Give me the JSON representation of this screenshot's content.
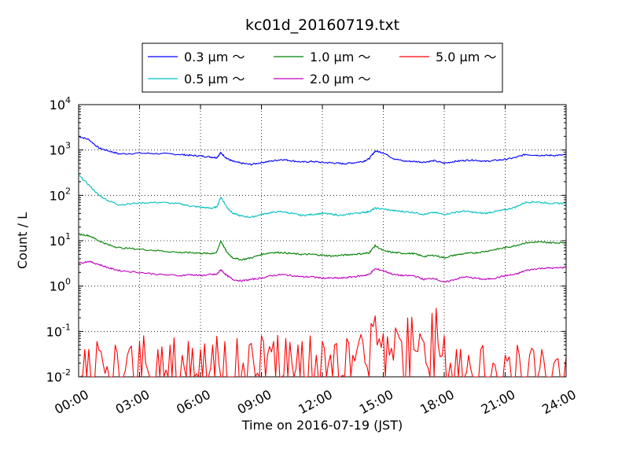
{
  "chart_data": {
    "type": "line",
    "title": "kc01d_20160719.txt",
    "xlabel": "Time on 2016-07-19 (JST)",
    "ylabel": "Count / L",
    "x_ticks": [
      "00:00",
      "03:00",
      "06:00",
      "09:00",
      "12:00",
      "15:00",
      "18:00",
      "21:00",
      "24:00"
    ],
    "y_ticks": [
      {
        "base": "10",
        "exp": "4"
      },
      {
        "base": "10",
        "exp": "3"
      },
      {
        "base": "10",
        "exp": "2"
      },
      {
        "base": "10",
        "exp": "1"
      },
      {
        "base": "10",
        "exp": "0"
      },
      {
        "base": "10",
        "exp": "-1"
      },
      {
        "base": "10",
        "exp": "-2"
      }
    ],
    "x_unit": "hours",
    "xlim": [
      0,
      24
    ],
    "ylim": [
      0.01,
      10000
    ],
    "y_scale": "log",
    "grid": true,
    "legend_position": "top-center",
    "series": [
      {
        "name": "0.3 μm ～",
        "color": "#0000ff",
        "x": [
          0,
          0.5,
          1,
          1.5,
          2,
          3,
          4,
          5,
          5.5,
          6,
          6.5,
          6.8,
          7,
          7.3,
          7.6,
          8,
          8.5,
          9,
          9.5,
          10,
          10.5,
          11,
          11.5,
          12,
          12.5,
          13,
          13.5,
          14,
          14.3,
          14.6,
          15,
          15.5,
          16,
          16.5,
          17,
          17.5,
          18,
          18.5,
          19,
          19.5,
          20,
          20.5,
          21,
          21.5,
          22,
          22.5,
          23,
          23.5,
          24
        ],
        "y": [
          2000,
          1700,
          1100,
          950,
          820,
          850,
          830,
          800,
          760,
          740,
          700,
          680,
          870,
          650,
          560,
          510,
          480,
          530,
          570,
          620,
          580,
          540,
          560,
          530,
          520,
          500,
          520,
          560,
          640,
          950,
          870,
          650,
          570,
          560,
          540,
          580,
          510,
          560,
          590,
          600,
          560,
          590,
          620,
          680,
          800,
          770,
          760,
          760,
          780
        ]
      },
      {
        "name": "0.5 μm ～",
        "color": "#00bfbf",
        "x": [
          0,
          0.5,
          1,
          1.5,
          2,
          3,
          4,
          5,
          5.5,
          6,
          6.5,
          6.8,
          7,
          7.3,
          7.6,
          8,
          8.5,
          9,
          9.5,
          10,
          10.5,
          11,
          11.5,
          12,
          12.5,
          13,
          13.5,
          14,
          14.3,
          14.6,
          15,
          15.5,
          16,
          16.5,
          17,
          17.5,
          18,
          18.5,
          19,
          19.5,
          20,
          20.5,
          21,
          21.5,
          22,
          22.5,
          23,
          23.5,
          24
        ],
        "y": [
          280,
          170,
          100,
          75,
          62,
          68,
          70,
          65,
          58,
          55,
          52,
          55,
          92,
          55,
          40,
          35,
          33,
          38,
          42,
          44,
          40,
          36,
          38,
          40,
          38,
          36,
          40,
          42,
          44,
          52,
          50,
          46,
          44,
          42,
          38,
          42,
          38,
          42,
          45,
          42,
          40,
          44,
          48,
          55,
          70,
          72,
          68,
          66,
          68
        ]
      },
      {
        "name": "1.0 μm ～",
        "color": "#008000",
        "x": [
          0,
          0.5,
          1,
          1.5,
          2,
          3,
          4,
          5,
          5.5,
          6,
          6.5,
          6.8,
          7,
          7.3,
          7.6,
          8,
          8.5,
          9,
          9.5,
          10,
          10.5,
          11,
          11.5,
          12,
          12.5,
          13,
          13.5,
          14,
          14.3,
          14.6,
          15,
          15.5,
          16,
          16.5,
          17,
          17.5,
          18,
          18.5,
          19,
          19.5,
          20,
          20.5,
          21,
          21.5,
          22,
          22.5,
          23,
          23.5,
          24
        ],
        "y": [
          14,
          13,
          10,
          8,
          7,
          6.5,
          6,
          5.5,
          5.5,
          5.3,
          5.2,
          5.5,
          10,
          5.5,
          4.2,
          3.8,
          4.2,
          5,
          5.5,
          5.5,
          5.2,
          5,
          5,
          4.8,
          4.6,
          4.8,
          5,
          5.2,
          5.4,
          7.8,
          6,
          5.5,
          5.3,
          5.2,
          4.5,
          4.8,
          4.2,
          4.8,
          5.2,
          5.4,
          5.8,
          6.4,
          7,
          7.8,
          9,
          9.3,
          9.2,
          9,
          9.2
        ]
      },
      {
        "name": "2.0 μm ～",
        "color": "#bf00bf",
        "x": [
          0,
          0.5,
          1,
          1.5,
          2,
          3,
          4,
          5,
          5.5,
          6,
          6.5,
          6.8,
          7,
          7.3,
          7.6,
          8,
          8.5,
          9,
          9.5,
          10,
          10.5,
          11,
          11.5,
          12,
          12.5,
          13,
          13.5,
          14,
          14.3,
          14.6,
          15,
          15.5,
          16,
          16.5,
          17,
          17.5,
          18,
          18.5,
          19,
          19.5,
          20,
          20.5,
          21,
          21.5,
          22,
          22.5,
          23,
          23.5,
          24
        ],
        "y": [
          3.2,
          3.5,
          3,
          2.5,
          2.2,
          2,
          1.8,
          1.7,
          1.8,
          1.7,
          1.8,
          1.8,
          2.3,
          1.7,
          1.4,
          1.3,
          1.4,
          1.5,
          1.7,
          1.8,
          1.7,
          1.6,
          1.6,
          1.5,
          1.5,
          1.5,
          1.6,
          1.7,
          1.8,
          2.4,
          2.2,
          1.8,
          1.7,
          1.7,
          1.4,
          1.5,
          1.2,
          1.4,
          1.6,
          1.5,
          1.4,
          1.5,
          1.7,
          1.8,
          2.2,
          2.4,
          2.5,
          2.5,
          2.6
        ]
      },
      {
        "name": "5.0 μm ～",
        "color": "#ff0000",
        "note_style": "noisy",
        "x": [
          0,
          0.3,
          0.6,
          0.9,
          1.2,
          1.5,
          1.8,
          2.1,
          2.4,
          2.7,
          3,
          3.3,
          3.6,
          3.9,
          4.2,
          4.5,
          4.8,
          5.1,
          5.4,
          5.7,
          6,
          6.3,
          6.6,
          6.9,
          7.2,
          7.5,
          7.8,
          8.1,
          8.4,
          8.7,
          9,
          9.3,
          9.6,
          9.9,
          10.2,
          10.5,
          10.8,
          11.1,
          11.4,
          11.7,
          12,
          12.3,
          12.6,
          12.9,
          13.2,
          13.5,
          13.8,
          14.1,
          14.4,
          14.7,
          15,
          15.3,
          15.6,
          15.9,
          16.2,
          16.5,
          16.8,
          17.1,
          17.4,
          17.7,
          18,
          18.3,
          18.6,
          18.9,
          19.2,
          19.5,
          19.8,
          20.1,
          20.4,
          20.7,
          21,
          21.3,
          21.6,
          21.9,
          22.2,
          22.5,
          22.8,
          23.1,
          23.4,
          23.7,
          24
        ],
        "y": [
          0.01,
          0.04,
          0.01,
          0.06,
          0.02,
          0.01,
          0.05,
          0.01,
          0.03,
          0.01,
          0.06,
          0.02,
          0.01,
          0.04,
          0.01,
          0.05,
          0.01,
          0.03,
          0.06,
          0.01,
          0.04,
          0.01,
          0.05,
          0.02,
          0.06,
          0.01,
          0.07,
          0.02,
          0.05,
          0.01,
          0.08,
          0.03,
          0.06,
          0.01,
          0.07,
          0.02,
          0.05,
          0.01,
          0.08,
          0.03,
          0.06,
          0.02,
          0.05,
          0.01,
          0.07,
          0.03,
          0.06,
          0.02,
          0.15,
          0.05,
          0.09,
          0.03,
          0.12,
          0.06,
          0.2,
          0.04,
          0.09,
          0.02,
          0.25,
          0.05,
          0.08,
          0.02,
          0.04,
          0.01,
          0.03,
          0.01,
          0.04,
          0.01,
          0.02,
          0.01,
          0.03,
          0.01,
          0.05,
          0.01,
          0.03,
          0.01,
          0.04,
          0.01,
          0.02,
          0.01,
          0.03
        ]
      }
    ]
  }
}
